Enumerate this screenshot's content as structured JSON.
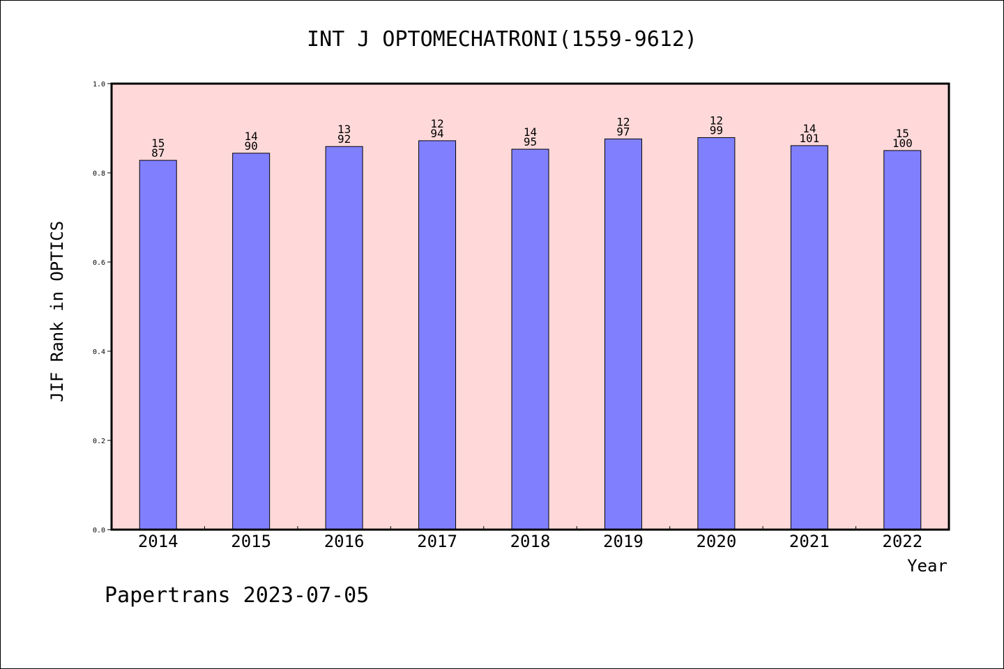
{
  "chart_data": {
    "type": "bar",
    "title": "INT J OPTOMECHATRONI(1559-9612)",
    "xlabel": "Year",
    "ylabel": "JIF Rank in OPTICS",
    "ylim": [
      0,
      1.0
    ],
    "yticks": [
      "0.0",
      "0.2",
      "0.4",
      "0.6",
      "0.8",
      "1.0"
    ],
    "categories": [
      "2014",
      "2015",
      "2016",
      "2017",
      "2018",
      "2019",
      "2020",
      "2021",
      "2022"
    ],
    "values": [
      0.828,
      0.844,
      0.859,
      0.872,
      0.853,
      0.876,
      0.879,
      0.861,
      0.85
    ],
    "rank_labels": [
      "15",
      "14",
      "13",
      "12",
      "14",
      "12",
      "12",
      "14",
      "15"
    ],
    "total_labels": [
      "87",
      "90",
      "92",
      "94",
      "95",
      "97",
      "99",
      "101",
      "100"
    ],
    "grid": false,
    "colors": {
      "bar_fill": "#8080ff",
      "plot_background": "#ffd9d9",
      "axis": "#000000"
    }
  },
  "footer": {
    "text": "Papertrans 2023-07-05"
  }
}
